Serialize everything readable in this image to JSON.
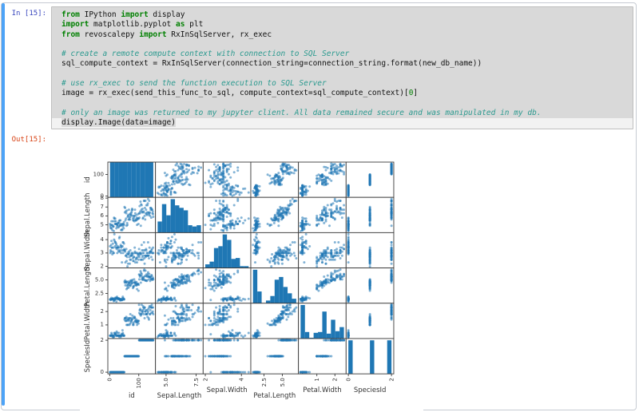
{
  "notebook": {
    "input": {
      "prompt": "In [15]:",
      "lines": [
        {
          "tokens": [
            {
              "t": "k",
              "s": "from"
            },
            {
              "t": "p",
              "s": " IPython "
            },
            {
              "t": "k",
              "s": "import"
            },
            {
              "t": "p",
              "s": " display"
            }
          ]
        },
        {
          "tokens": [
            {
              "t": "k",
              "s": "import"
            },
            {
              "t": "p",
              "s": " matplotlib.pyplot "
            },
            {
              "t": "k",
              "s": "as"
            },
            {
              "t": "p",
              "s": " plt"
            }
          ]
        },
        {
          "tokens": [
            {
              "t": "k",
              "s": "from"
            },
            {
              "t": "p",
              "s": " revoscalepy "
            },
            {
              "t": "k",
              "s": "import"
            },
            {
              "t": "p",
              "s": " RxInSqlServer, rx_exec"
            }
          ]
        },
        {
          "tokens": []
        },
        {
          "tokens": [
            {
              "t": "c",
              "s": "# create a remote compute context with connection to SQL Server"
            }
          ]
        },
        {
          "tokens": [
            {
              "t": "p",
              "s": "sql_compute_context = RxInSqlServer(connection_string=connection_string.format(new_db_name))"
            }
          ]
        },
        {
          "tokens": []
        },
        {
          "tokens": [
            {
              "t": "c",
              "s": "# use rx_exec to send the function execution to SQL Server"
            }
          ]
        },
        {
          "tokens": [
            {
              "t": "p",
              "s": "image = rx_exec(send_this_func_to_sql, compute_context=sql_compute_context)["
            },
            {
              "t": "n",
              "s": "0"
            },
            {
              "t": "p",
              "s": "]"
            }
          ]
        },
        {
          "tokens": []
        },
        {
          "tokens": [
            {
              "t": "c",
              "s": "# only an image was returned to my jupyter client. All data remained secure and was manipulated in my db."
            }
          ]
        },
        {
          "tokens": [
            {
              "t": "p",
              "s": "display.Image(data=image)"
            }
          ],
          "strip": true
        }
      ]
    },
    "output": {
      "prompt": "Out[15]:"
    }
  },
  "chart_data": {
    "type": "scatter_matrix",
    "title": "",
    "grid": false,
    "hist_bins": 10,
    "point_color": "#1f77b4",
    "point_alpha": 0.55,
    "axis_color": "#3a3a3a",
    "variables": [
      {
        "name": "id",
        "key": "id",
        "range": [
          -6.5,
          157.5
        ],
        "xticks": [
          [
            0,
            "0"
          ],
          [
            100,
            "100"
          ]
        ],
        "yticks": [
          [
            0,
            "0"
          ],
          [
            100,
            "100"
          ]
        ],
        "level": "low"
      },
      {
        "name": "Sepal.Length",
        "key": "sepal_length",
        "range": [
          4.12,
          8.08
        ],
        "xticks": [
          [
            5,
            "5.0"
          ],
          [
            7.5,
            "7.5"
          ]
        ],
        "yticks": [
          [
            5,
            "5"
          ],
          [
            6,
            "6"
          ],
          [
            7,
            "7"
          ],
          [
            8,
            "8"
          ]
        ],
        "level": "low"
      },
      {
        "name": "Sepal.Width",
        "key": "sepal_width",
        "range": [
          1.88,
          4.52
        ],
        "xticks": [
          [
            2,
            "2"
          ],
          [
            4,
            "4"
          ]
        ],
        "yticks": [
          [
            2,
            "2"
          ],
          [
            3,
            "3"
          ],
          [
            4,
            "4"
          ]
        ],
        "level": "high"
      },
      {
        "name": "Petal.Length",
        "key": "petal_length",
        "range": [
          0.7,
          7.2
        ],
        "xticks": [
          [
            2.5,
            "2.5"
          ],
          [
            5,
            "5.0"
          ]
        ],
        "yticks": [
          [
            2.5,
            "2.5"
          ],
          [
            5,
            "5.0"
          ]
        ],
        "level": "low"
      },
      {
        "name": "Petal.Width",
        "key": "petal_width",
        "range": [
          -0.02,
          2.62
        ],
        "xticks": [
          [
            1,
            "1"
          ],
          [
            2,
            "2"
          ]
        ],
        "yticks": [
          [
            1,
            "1"
          ],
          [
            2,
            "2"
          ]
        ],
        "level": "high"
      },
      {
        "name": "SpeciesId",
        "key": "species_id",
        "range": [
          -0.105,
          2.105
        ],
        "xticks": [
          [
            0,
            "0"
          ],
          [
            2,
            "2"
          ]
        ],
        "yticks": [
          [
            0,
            "0"
          ],
          [
            2,
            "2"
          ]
        ],
        "level": "high"
      }
    ],
    "data": {
      "id": [
        1,
        2,
        3,
        4,
        5,
        6,
        7,
        8,
        9,
        10,
        11,
        12,
        13,
        14,
        15,
        16,
        17,
        18,
        19,
        20,
        21,
        22,
        23,
        24,
        25,
        26,
        27,
        28,
        29,
        30,
        31,
        32,
        33,
        34,
        35,
        36,
        37,
        38,
        39,
        40,
        41,
        42,
        43,
        44,
        45,
        46,
        47,
        48,
        49,
        50,
        51,
        52,
        53,
        54,
        55,
        56,
        57,
        58,
        59,
        60,
        61,
        62,
        63,
        64,
        65,
        66,
        67,
        68,
        69,
        70,
        71,
        72,
        73,
        74,
        75,
        76,
        77,
        78,
        79,
        80,
        81,
        82,
        83,
        84,
        85,
        86,
        87,
        88,
        89,
        90,
        91,
        92,
        93,
        94,
        95,
        96,
        97,
        98,
        99,
        100,
        101,
        102,
        103,
        104,
        105,
        106,
        107,
        108,
        109,
        110,
        111,
        112,
        113,
        114,
        115,
        116,
        117,
        118,
        119,
        120,
        121,
        122,
        123,
        124,
        125,
        126,
        127,
        128,
        129,
        130,
        131,
        132,
        133,
        134,
        135,
        136,
        137,
        138,
        139,
        140,
        141,
        142,
        143,
        144,
        145,
        146,
        147,
        148,
        149,
        150
      ],
      "sepal_length": [
        5.1,
        4.9,
        4.7,
        4.6,
        5.0,
        5.4,
        4.6,
        5.0,
        4.4,
        4.9,
        5.4,
        4.8,
        4.8,
        4.3,
        5.8,
        5.7,
        5.4,
        5.1,
        5.7,
        5.1,
        5.4,
        5.1,
        4.6,
        5.1,
        4.8,
        5.0,
        5.0,
        5.2,
        5.2,
        4.7,
        4.8,
        5.4,
        5.2,
        5.5,
        4.9,
        5.0,
        5.5,
        4.9,
        4.4,
        5.1,
        5.0,
        4.5,
        4.4,
        5.0,
        5.1,
        4.8,
        5.1,
        4.6,
        5.3,
        5.0,
        7.0,
        6.4,
        6.9,
        5.5,
        6.5,
        5.7,
        6.3,
        4.9,
        6.6,
        5.2,
        5.0,
        5.9,
        6.0,
        6.1,
        5.6,
        6.7,
        5.6,
        5.8,
        6.2,
        5.6,
        5.9,
        6.1,
        6.3,
        6.1,
        6.4,
        6.6,
        6.8,
        6.7,
        6.0,
        5.7,
        5.5,
        5.5,
        5.8,
        6.0,
        5.4,
        6.0,
        6.7,
        6.3,
        5.6,
        5.5,
        5.5,
        6.1,
        5.8,
        5.0,
        5.6,
        5.7,
        5.7,
        6.2,
        5.1,
        5.7,
        6.3,
        5.8,
        7.1,
        6.3,
        6.5,
        7.6,
        4.9,
        7.3,
        6.7,
        7.2,
        6.5,
        6.4,
        6.8,
        5.7,
        5.8,
        6.4,
        6.5,
        7.7,
        7.7,
        6.0,
        6.9,
        5.6,
        7.7,
        6.3,
        6.7,
        7.2,
        6.2,
        6.1,
        6.4,
        7.2,
        7.4,
        7.9,
        6.4,
        6.3,
        6.1,
        7.7,
        6.3,
        6.4,
        6.0,
        6.9,
        6.7,
        6.9,
        5.8,
        6.8,
        6.7,
        6.7,
        6.3,
        6.5,
        6.2,
        5.9
      ],
      "sepal_width": [
        3.5,
        3.0,
        3.2,
        3.1,
        3.6,
        3.9,
        3.4,
        3.4,
        2.9,
        3.1,
        3.7,
        3.4,
        3.0,
        3.0,
        4.0,
        4.4,
        3.9,
        3.5,
        3.8,
        3.8,
        3.4,
        3.7,
        3.6,
        3.3,
        3.4,
        3.0,
        3.4,
        3.5,
        3.4,
        3.2,
        3.1,
        3.4,
        4.1,
        4.2,
        3.1,
        3.2,
        3.5,
        3.6,
        3.0,
        3.4,
        3.5,
        2.3,
        3.2,
        3.5,
        3.8,
        3.0,
        3.8,
        3.2,
        3.7,
        3.3,
        3.2,
        3.2,
        3.1,
        2.3,
        2.8,
        2.8,
        3.3,
        2.4,
        2.9,
        2.7,
        2.0,
        3.0,
        2.2,
        2.9,
        2.9,
        3.1,
        3.0,
        2.7,
        2.2,
        2.5,
        3.2,
        2.8,
        2.5,
        2.8,
        2.9,
        3.0,
        2.8,
        3.0,
        2.9,
        2.6,
        2.4,
        2.4,
        2.7,
        2.7,
        3.0,
        3.4,
        3.1,
        2.3,
        3.0,
        2.5,
        2.6,
        3.0,
        2.6,
        2.3,
        2.7,
        3.0,
        2.9,
        2.9,
        2.5,
        2.8,
        3.3,
        2.7,
        3.0,
        2.9,
        3.0,
        3.0,
        2.5,
        2.9,
        2.5,
        3.6,
        3.2,
        2.7,
        3.0,
        2.5,
        2.8,
        3.2,
        3.0,
        3.8,
        2.6,
        2.2,
        3.2,
        2.8,
        2.8,
        2.7,
        3.3,
        3.2,
        2.8,
        3.0,
        2.8,
        3.0,
        2.8,
        3.8,
        2.8,
        2.8,
        2.6,
        3.0,
        3.4,
        3.1,
        3.0,
        3.1,
        3.1,
        3.1,
        2.7,
        3.2,
        3.3,
        3.0,
        2.5,
        3.0,
        3.4,
        3.0
      ],
      "petal_length": [
        1.4,
        1.4,
        1.3,
        1.5,
        1.4,
        1.7,
        1.4,
        1.5,
        1.4,
        1.5,
        1.5,
        1.6,
        1.4,
        1.1,
        1.2,
        1.5,
        1.3,
        1.4,
        1.7,
        1.5,
        1.7,
        1.5,
        1.0,
        1.7,
        1.9,
        1.6,
        1.6,
        1.5,
        1.4,
        1.6,
        1.6,
        1.5,
        1.5,
        1.4,
        1.5,
        1.2,
        1.3,
        1.4,
        1.3,
        1.5,
        1.3,
        1.3,
        1.3,
        1.6,
        1.9,
        1.4,
        1.6,
        1.4,
        1.5,
        1.4,
        4.7,
        4.5,
        4.9,
        4.0,
        4.6,
        4.5,
        4.7,
        3.3,
        4.6,
        3.9,
        3.5,
        4.2,
        4.0,
        4.7,
        3.6,
        4.4,
        4.5,
        4.1,
        4.5,
        3.9,
        4.8,
        4.0,
        4.9,
        4.7,
        4.3,
        4.4,
        4.8,
        5.0,
        4.5,
        3.5,
        3.8,
        3.7,
        3.9,
        5.1,
        4.5,
        4.5,
        4.7,
        4.4,
        4.1,
        4.0,
        4.4,
        4.6,
        4.0,
        3.3,
        4.2,
        4.2,
        4.2,
        4.3,
        3.0,
        4.1,
        6.0,
        5.1,
        5.9,
        5.6,
        5.8,
        6.6,
        4.5,
        6.3,
        5.8,
        6.1,
        5.1,
        5.3,
        5.5,
        5.0,
        5.1,
        5.3,
        5.5,
        6.7,
        6.9,
        5.0,
        5.7,
        4.9,
        6.7,
        4.9,
        5.7,
        6.0,
        4.8,
        4.9,
        5.6,
        5.8,
        6.1,
        6.4,
        5.6,
        5.1,
        5.6,
        6.1,
        5.6,
        5.5,
        4.8,
        5.4,
        5.6,
        5.1,
        5.1,
        5.9,
        5.7,
        5.2,
        5.0,
        5.2,
        5.4,
        5.1
      ],
      "petal_width": [
        0.2,
        0.2,
        0.2,
        0.2,
        0.2,
        0.4,
        0.3,
        0.2,
        0.2,
        0.1,
        0.2,
        0.2,
        0.1,
        0.1,
        0.2,
        0.4,
        0.4,
        0.3,
        0.3,
        0.3,
        0.2,
        0.4,
        0.2,
        0.5,
        0.2,
        0.2,
        0.4,
        0.2,
        0.2,
        0.2,
        0.2,
        0.4,
        0.1,
        0.2,
        0.2,
        0.2,
        0.2,
        0.1,
        0.2,
        0.2,
        0.3,
        0.3,
        0.2,
        0.6,
        0.4,
        0.3,
        0.2,
        0.2,
        0.2,
        0.2,
        1.4,
        1.5,
        1.5,
        1.3,
        1.5,
        1.3,
        1.6,
        1.0,
        1.3,
        1.4,
        1.0,
        1.5,
        1.0,
        1.4,
        1.3,
        1.4,
        1.5,
        1.0,
        1.5,
        1.1,
        1.8,
        1.3,
        1.5,
        1.2,
        1.3,
        1.4,
        1.4,
        1.7,
        1.5,
        1.0,
        1.1,
        1.0,
        1.2,
        1.6,
        1.5,
        1.6,
        1.5,
        1.3,
        1.3,
        1.3,
        1.2,
        1.4,
        1.2,
        1.0,
        1.3,
        1.2,
        1.3,
        1.3,
        1.1,
        1.3,
        2.5,
        1.9,
        2.1,
        1.8,
        2.2,
        2.1,
        1.7,
        1.8,
        1.8,
        2.5,
        2.0,
        1.9,
        2.1,
        2.0,
        2.4,
        2.3,
        1.8,
        2.2,
        2.3,
        1.5,
        2.3,
        2.0,
        2.0,
        1.8,
        2.1,
        1.8,
        1.8,
        1.8,
        2.1,
        1.6,
        1.9,
        2.0,
        2.2,
        1.5,
        1.4,
        2.3,
        2.4,
        1.8,
        1.8,
        2.1,
        2.4,
        2.3,
        1.9,
        2.3,
        2.5,
        2.3,
        1.9,
        2.0,
        2.3,
        1.8
      ],
      "species_id": [
        0,
        0,
        0,
        0,
        0,
        0,
        0,
        0,
        0,
        0,
        0,
        0,
        0,
        0,
        0,
        0,
        0,
        0,
        0,
        0,
        0,
        0,
        0,
        0,
        0,
        0,
        0,
        0,
        0,
        0,
        0,
        0,
        0,
        0,
        0,
        0,
        0,
        0,
        0,
        0,
        0,
        0,
        0,
        0,
        0,
        0,
        0,
        0,
        0,
        0,
        1,
        1,
        1,
        1,
        1,
        1,
        1,
        1,
        1,
        1,
        1,
        1,
        1,
        1,
        1,
        1,
        1,
        1,
        1,
        1,
        1,
        1,
        1,
        1,
        1,
        1,
        1,
        1,
        1,
        1,
        1,
        1,
        1,
        1,
        1,
        1,
        1,
        1,
        1,
        1,
        1,
        1,
        1,
        1,
        1,
        1,
        1,
        1,
        1,
        1,
        2,
        2,
        2,
        2,
        2,
        2,
        2,
        2,
        2,
        2,
        2,
        2,
        2,
        2,
        2,
        2,
        2,
        2,
        2,
        2,
        2,
        2,
        2,
        2,
        2,
        2,
        2,
        2,
        2,
        2,
        2,
        2,
        2,
        2,
        2,
        2,
        2,
        2,
        2,
        2,
        2,
        2,
        2,
        2,
        2,
        2,
        2,
        2,
        2,
        2
      ]
    }
  }
}
